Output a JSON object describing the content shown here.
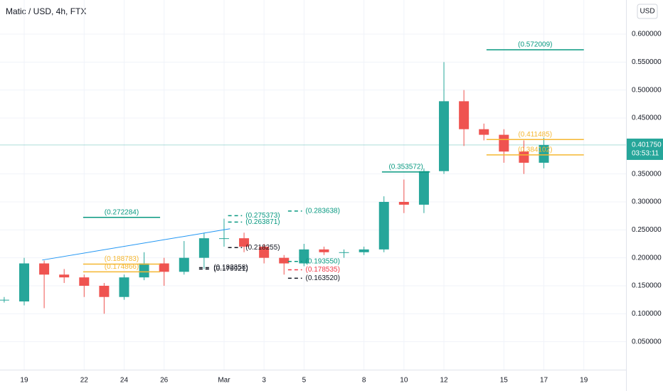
{
  "chart_data": {
    "type": "candlestick",
    "title": "Matic / USD, 4h, FTX",
    "currency": "USD",
    "up_color": "#26a69a",
    "down_color": "#ef5350",
    "grid": true,
    "xlim": [
      -1.21,
      30.11
    ],
    "ylim": [
      0,
      0.661
    ],
    "xticks": [
      {
        "value": 0,
        "label": "19"
      },
      {
        "value": 3,
        "label": "22"
      },
      {
        "value": 5,
        "label": "24"
      },
      {
        "value": 7,
        "label": "26"
      },
      {
        "value": 10,
        "label": "Mar"
      },
      {
        "value": 12,
        "label": "3"
      },
      {
        "value": 14,
        "label": "5"
      },
      {
        "value": 17,
        "label": "8"
      },
      {
        "value": 19,
        "label": "10"
      },
      {
        "value": 21,
        "label": "12"
      },
      {
        "value": 24,
        "label": "15"
      },
      {
        "value": 26,
        "label": "17"
      },
      {
        "value": 28,
        "label": "19"
      }
    ],
    "yticks": [
      {
        "value": 0.05,
        "label": "0.050000"
      },
      {
        "value": 0.1,
        "label": "0.100000"
      },
      {
        "value": 0.15,
        "label": "0.150000"
      },
      {
        "value": 0.2,
        "label": "0.200000"
      },
      {
        "value": 0.25,
        "label": "0.250000"
      },
      {
        "value": 0.3,
        "label": "0.300000"
      },
      {
        "value": 0.35,
        "label": "0.350000"
      },
      {
        "value": 0.45,
        "label": "0.450000"
      },
      {
        "value": 0.5,
        "label": "0.500000"
      },
      {
        "value": 0.55,
        "label": "0.550000"
      },
      {
        "value": 0.6,
        "label": "0.600000"
      }
    ],
    "candles": {
      "x": [
        -1,
        0,
        1,
        2,
        3,
        4,
        5,
        6,
        7,
        8,
        9,
        10,
        11,
        12,
        13,
        14,
        15,
        16,
        17,
        18,
        19,
        20,
        21,
        22,
        23,
        24,
        25,
        26
      ],
      "open": [
        0.125,
        0.122,
        0.19,
        0.17,
        0.165,
        0.15,
        0.13,
        0.165,
        0.19,
        0.175,
        0.2,
        0.235,
        0.235,
        0.22,
        0.2,
        0.19,
        0.215,
        0.21,
        0.21,
        0.215,
        0.3,
        0.295,
        0.355,
        0.48,
        0.43,
        0.42,
        0.39,
        0.37
      ],
      "high": [
        0.13,
        0.2,
        0.195,
        0.18,
        0.17,
        0.155,
        0.17,
        0.21,
        0.2,
        0.23,
        0.245,
        0.27,
        0.245,
        0.225,
        0.205,
        0.225,
        0.22,
        0.215,
        0.22,
        0.31,
        0.34,
        0.36,
        0.55,
        0.5,
        0.44,
        0.43,
        0.41,
        0.415
      ],
      "low": [
        0.12,
        0.115,
        0.11,
        0.155,
        0.13,
        0.1,
        0.125,
        0.16,
        0.15,
        0.17,
        0.18,
        0.22,
        0.21,
        0.19,
        0.17,
        0.185,
        0.205,
        0.2,
        0.205,
        0.21,
        0.28,
        0.28,
        0.35,
        0.4,
        0.41,
        0.37,
        0.35,
        0.36
      ],
      "close": [
        0.125,
        0.19,
        0.17,
        0.165,
        0.15,
        0.13,
        0.165,
        0.19,
        0.175,
        0.2,
        0.235,
        0.235,
        0.22,
        0.2,
        0.19,
        0.215,
        0.21,
        0.21,
        0.215,
        0.3,
        0.295,
        0.355,
        0.48,
        0.43,
        0.42,
        0.39,
        0.37,
        0.40175
      ]
    },
    "trendline": {
      "x": [
        0.9,
        10.3
      ],
      "y": [
        0.196,
        0.252
      ],
      "color": "#2196f3"
    },
    "levels": [
      {
        "label": "(0.572009)",
        "value": 0.572009,
        "color": "#089981",
        "x": [
          23.13,
          28
        ],
        "style": "solid"
      },
      {
        "label": "(0.411485)",
        "value": 0.411485,
        "color": "#f5b731",
        "x": [
          23.13,
          28
        ],
        "style": "solid"
      },
      {
        "label": "(0.384102)",
        "value": 0.384102,
        "color": "#f5b731",
        "x": [
          23.13,
          28
        ],
        "style": "solid"
      },
      {
        "label": "(0.353572)",
        "value": 0.353572,
        "color": "#089981",
        "x": [
          17.9,
          20.3
        ],
        "style": "solid"
      },
      {
        "label": "(0.272284)",
        "value": 0.272284,
        "color": "#089981",
        "x": [
          2.95,
          6.8
        ],
        "style": "solid"
      },
      {
        "label": "(0.188783)",
        "value": 0.188783,
        "color": "#f5b731",
        "x": [
          2.95,
          6.8
        ],
        "style": "solid"
      },
      {
        "label": "(0.174866)",
        "value": 0.174866,
        "color": "#f5b731",
        "x": [
          2.95,
          6.8
        ],
        "style": "solid"
      },
      {
        "label": "(0.283638)",
        "value": 0.283638,
        "color": "#089981",
        "x": [
          13.2,
          13.9
        ],
        "style": "dashed"
      },
      {
        "label": "(0.275373)",
        "value": 0.275373,
        "color": "#089981",
        "x": [
          10.2,
          10.9
        ],
        "style": "dashed"
      },
      {
        "label": "(0.263871)",
        "value": 0.263871,
        "color": "#089981",
        "x": [
          10.2,
          10.9
        ],
        "style": "dashed"
      },
      {
        "label": "(0.218255)",
        "value": 0.218255,
        "color": "#131722",
        "x": [
          10.2,
          10.9
        ],
        "style": "dashed"
      },
      {
        "label": "(0.182358)",
        "value": 0.182358,
        "color": "#131722",
        "x": [
          8.75,
          9.3
        ],
        "style": "dashed"
      },
      {
        "label": "(0.179921)",
        "value": 0.179921,
        "color": "#131722",
        "x": [
          8.75,
          9.3
        ],
        "style": "dashed"
      },
      {
        "label": "(0.193550)",
        "value": 0.19355,
        "color": "#089981",
        "x": [
          13.2,
          13.9
        ],
        "style": "dashed"
      },
      {
        "label": "(0.178535)",
        "value": 0.178535,
        "color": "#f23645",
        "x": [
          13.2,
          13.9
        ],
        "style": "dashed"
      },
      {
        "label": "(0.163520)",
        "value": 0.16352,
        "color": "#131722",
        "x": [
          13.2,
          13.9
        ],
        "style": "dashed"
      }
    ],
    "last_price": {
      "value": 0.40175,
      "label": "0.401750",
      "countdown": "03:53:11",
      "color": "#26a69a"
    }
  }
}
